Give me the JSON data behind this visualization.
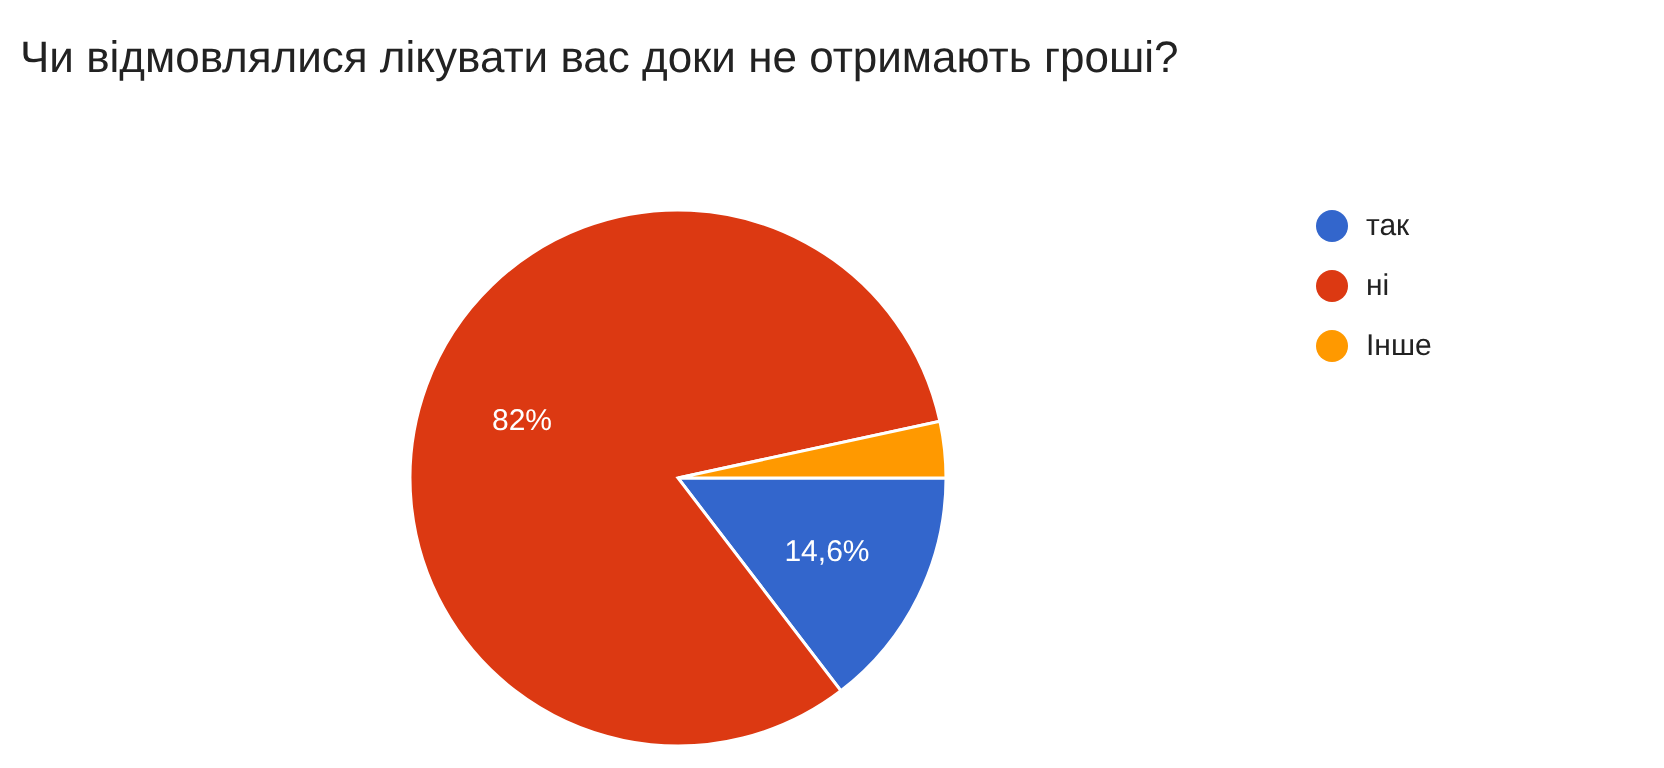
{
  "chart_data": {
    "type": "pie",
    "title": "Чи відмовлялися лікувати вас доки не отримають гроші?",
    "categories": [
      "так",
      "ні",
      "Інше"
    ],
    "values": [
      14.6,
      82,
      3.4
    ],
    "colors": [
      "#3366cc",
      "#dc3912",
      "#ff9900"
    ],
    "value_labels": [
      "14,6%",
      "82%",
      null
    ],
    "legend": "right"
  }
}
